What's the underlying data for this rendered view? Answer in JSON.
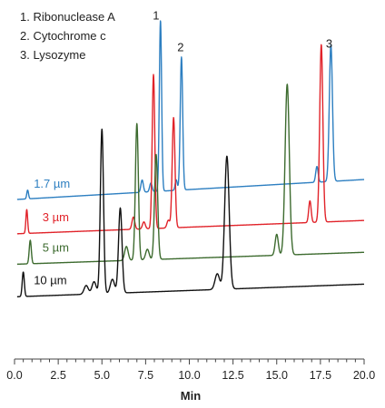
{
  "chart_data": {
    "type": "line",
    "title": "",
    "xlabel": "Min",
    "ylabel": "",
    "xlim": [
      0,
      20
    ],
    "ylim": [
      0,
      100
    ],
    "x_ticks": [
      "0.0",
      "2.5",
      "5.0",
      "7.5",
      "10.0",
      "12.5",
      "15.0",
      "17.5",
      "20.0"
    ],
    "grid": false,
    "legend": {
      "placement": "top-left",
      "entries": [
        "1. Ribonuclease A",
        "2. Cytochrome c",
        "3. Lysozyme"
      ]
    },
    "peak_labels": [
      {
        "text": "1",
        "x": 8.1,
        "y": 97
      },
      {
        "text": "2",
        "x": 9.5,
        "y": 88
      },
      {
        "text": "3",
        "x": 18.0,
        "y": 89
      }
    ],
    "series": [
      {
        "name": "1.7 µm",
        "color": "#2d7fc1",
        "baseline_start": 45.6,
        "baseline_end": 51.3,
        "peaks": [
          {
            "x": 0.75,
            "h": 2.5,
            "w": 0.05
          },
          {
            "x": 7.3,
            "h": 3.5,
            "w": 0.07
          },
          {
            "x": 7.8,
            "h": 2.5,
            "w": 0.07
          },
          {
            "x": 8.35,
            "h": 48.8,
            "w": 0.065
          },
          {
            "x": 9.25,
            "h": 3.0,
            "w": 0.06
          },
          {
            "x": 9.55,
            "h": 38.0,
            "w": 0.07
          },
          {
            "x": 17.3,
            "h": 4.5,
            "w": 0.07
          },
          {
            "x": 18.1,
            "h": 39.0,
            "w": 0.09
          }
        ]
      },
      {
        "name": "3 µm",
        "color": "#e1232a",
        "baseline_start": 35.8,
        "baseline_end": 39.6,
        "peaks": [
          {
            "x": 0.7,
            "h": 6.8,
            "w": 0.05
          },
          {
            "x": 6.8,
            "h": 3.5,
            "w": 0.08
          },
          {
            "x": 7.4,
            "h": 2.0,
            "w": 0.08
          },
          {
            "x": 7.95,
            "h": 44.0,
            "w": 0.075
          },
          {
            "x": 8.8,
            "h": 2.2,
            "w": 0.08
          },
          {
            "x": 9.1,
            "h": 31.5,
            "w": 0.08
          },
          {
            "x": 16.9,
            "h": 6.2,
            "w": 0.07
          },
          {
            "x": 17.55,
            "h": 50.7,
            "w": 0.09
          }
        ]
      },
      {
        "name": "5 µm",
        "color": "#3d6b2f",
        "baseline_start": 27.1,
        "baseline_end": 30.5,
        "peaks": [
          {
            "x": 0.9,
            "h": 6.7,
            "w": 0.06
          },
          {
            "x": 6.4,
            "h": 4.0,
            "w": 0.1
          },
          {
            "x": 7.0,
            "h": 39.0,
            "w": 0.085
          },
          {
            "x": 7.6,
            "h": 3.0,
            "w": 0.1
          },
          {
            "x": 8.1,
            "h": 30.0,
            "w": 0.09
          },
          {
            "x": 15.0,
            "h": 6.0,
            "w": 0.09
          },
          {
            "x": 15.6,
            "h": 48.8,
            "w": 0.12
          }
        ]
      },
      {
        "name": "10 µm",
        "color": "#111111",
        "baseline_start": 17.8,
        "baseline_end": 21.4,
        "peaks": [
          {
            "x": 0.5,
            "h": 7.0,
            "w": 0.06
          },
          {
            "x": 4.1,
            "h": 2.5,
            "w": 0.12
          },
          {
            "x": 4.55,
            "h": 3.5,
            "w": 0.12
          },
          {
            "x": 5.0,
            "h": 47.0,
            "w": 0.09
          },
          {
            "x": 5.6,
            "h": 4.0,
            "w": 0.12
          },
          {
            "x": 6.05,
            "h": 24.3,
            "w": 0.1
          },
          {
            "x": 11.6,
            "h": 4.5,
            "w": 0.13
          },
          {
            "x": 12.15,
            "h": 38.0,
            "w": 0.13
          }
        ]
      }
    ]
  }
}
